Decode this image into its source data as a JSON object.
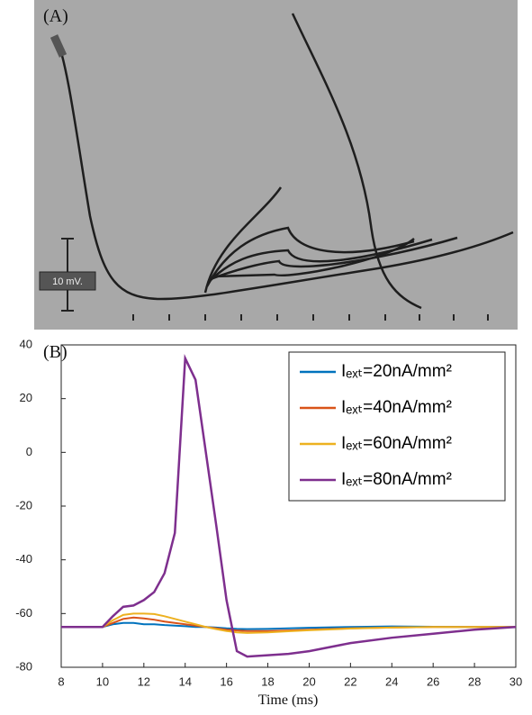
{
  "panel_a": {
    "label": "(A)",
    "scale_label": "10 mV."
  },
  "chart_data": {
    "type": "line",
    "panel_label": "(B)",
    "x_label": "Time (ms)",
    "x": [
      8,
      9,
      10,
      10.5,
      11,
      11.5,
      12,
      12.5,
      13,
      13.5,
      14,
      14.5,
      15,
      15.5,
      16,
      16.5,
      17,
      18,
      19,
      20,
      22,
      24,
      26,
      28,
      30
    ],
    "series": [
      {
        "name": "Iₑₓₜ=20nA/mm²",
        "color": "#0072bd",
        "values": [
          -65,
          -65,
          -65,
          -64,
          -63.5,
          -63.5,
          -64,
          -64,
          -64.3,
          -64.5,
          -64.7,
          -65,
          -65,
          -65.2,
          -65.5,
          -65.7,
          -65.8,
          -65.7,
          -65.5,
          -65.3,
          -65,
          -64.8,
          -64.9,
          -65,
          -65
        ]
      },
      {
        "name": "Iₑₓₜ=40nA/mm²",
        "color": "#d95319",
        "values": [
          -65,
          -65,
          -65,
          -63.5,
          -62,
          -61.5,
          -61.8,
          -62.3,
          -63,
          -63.5,
          -64,
          -64.5,
          -65,
          -65.5,
          -66,
          -66.3,
          -66.5,
          -66.5,
          -66.3,
          -66,
          -65.5,
          -65.2,
          -65,
          -65,
          -65
        ]
      },
      {
        "name": "Iₑₓₜ=60nA/mm²",
        "color": "#edb120",
        "values": [
          -65,
          -65,
          -65,
          -62.5,
          -60.5,
          -60,
          -60,
          -60.2,
          -61,
          -62,
          -63,
          -64,
          -65,
          -65.8,
          -66.5,
          -67,
          -67.2,
          -67,
          -66.6,
          -66.2,
          -65.6,
          -65.2,
          -65,
          -65,
          -65
        ]
      },
      {
        "name": "Iₑₓₜ=80nA/mm²",
        "color": "#7e2f8e",
        "values": [
          -65,
          -65,
          -65,
          -61,
          -57.5,
          -57,
          -55,
          -52,
          -45,
          -30,
          35,
          27,
          0,
          -27,
          -55,
          -74,
          -76,
          -75.5,
          -75,
          -74,
          -71,
          -69,
          -67.5,
          -66,
          -65
        ]
      }
    ],
    "xlim": [
      8,
      30
    ],
    "xticks": [
      8,
      10,
      12,
      14,
      16,
      18,
      20,
      22,
      24,
      26,
      28,
      30
    ],
    "ylim": [
      -80,
      40
    ],
    "yticks": [
      -80,
      -60,
      -40,
      -20,
      0,
      20,
      40
    ],
    "legend": "upper right"
  }
}
